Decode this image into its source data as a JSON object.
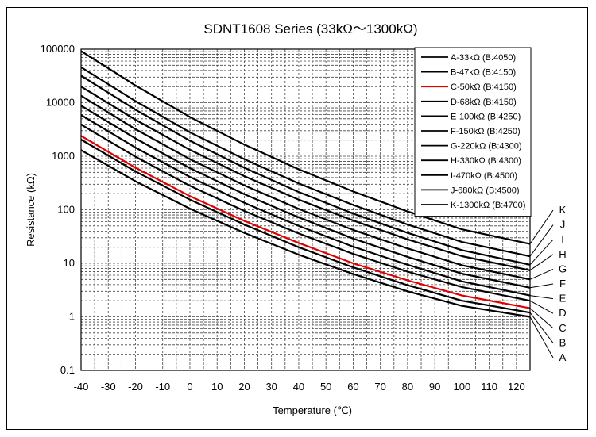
{
  "chart_data": {
    "type": "line",
    "title": "SDNT1608 Series (33kΩ～1300kΩ)",
    "xlabel": "Temperature (℃)",
    "ylabel": "Resistance (kΩ)",
    "xlim": [
      -40,
      125
    ],
    "ylim": [
      0.1,
      100000
    ],
    "yscale": "log",
    "grid": true,
    "legend_position": "top-right",
    "x_ticks": [
      -40,
      -30,
      -20,
      -10,
      0,
      10,
      20,
      30,
      40,
      50,
      60,
      70,
      80,
      90,
      100,
      110,
      120
    ],
    "y_ticks": [
      0.1,
      1,
      10,
      100,
      1000,
      10000,
      100000
    ],
    "y_tick_labels": [
      "0.1",
      "1",
      "10",
      "100",
      "1000",
      "10000",
      "100000"
    ],
    "x": [
      -40,
      -20,
      0,
      20,
      40,
      60,
      80,
      100,
      125
    ],
    "series": [
      {
        "name": "A-33kΩ (B:4050)",
        "end_label": "A",
        "color": "#000000",
        "values": [
          1300,
          340,
          105,
          37,
          14.5,
          6.3,
          3.0,
          1.6,
          1.0
        ]
      },
      {
        "name": "B-47kΩ (B:4150)",
        "end_label": "B",
        "color": "#000000",
        "values": [
          2050,
          520,
          155,
          53,
          20,
          8.4,
          3.9,
          2.0,
          1.2
        ]
      },
      {
        "name": "C-50kΩ (B:4150)",
        "end_label": "C",
        "color": "#e00000",
        "values": [
          2400,
          610,
          180,
          62,
          24,
          10,
          4.8,
          2.5,
          1.45
        ]
      },
      {
        "name": "D-68kΩ (B:4150)",
        "end_label": "D",
        "color": "#000000",
        "values": [
          3900,
          980,
          280,
          95,
          36,
          15,
          7.0,
          3.6,
          2.0
        ]
      },
      {
        "name": "E-100kΩ (B:4250)",
        "end_label": "E",
        "color": "#000000",
        "values": [
          5900,
          1450,
          410,
          135,
          50,
          20.5,
          9.4,
          4.6,
          2.5
        ]
      },
      {
        "name": "F-150kΩ (B:4250)",
        "end_label": "F",
        "color": "#000000",
        "values": [
          8800,
          2150,
          600,
          195,
          72,
          29,
          13.2,
          6.4,
          3.5
        ]
      },
      {
        "name": "G-220kΩ (B:4300)",
        "end_label": "G",
        "color": "#000000",
        "values": [
          13500,
          3200,
          880,
          285,
          104,
          42,
          19,
          9.2,
          5.0
        ]
      },
      {
        "name": "H-330kΩ (B:4300)",
        "end_label": "H",
        "color": "#000000",
        "values": [
          20000,
          4800,
          1320,
          425,
          155,
          63,
          28,
          13.6,
          7.4
        ]
      },
      {
        "name": "I-470kΩ (B:4500)",
        "end_label": "I",
        "color": "#000000",
        "values": [
          32000,
          7400,
          1950,
          610,
          215,
          85,
          37,
          17.6,
          9.4
        ]
      },
      {
        "name": "J-680kΩ (B:4500)",
        "end_label": "J",
        "color": "#000000",
        "values": [
          46000,
          10700,
          2800,
          880,
          310,
          123,
          53,
          25,
          13.5
        ]
      },
      {
        "name": "K-1300kΩ (B:4700)",
        "end_label": "K",
        "color": "#000000",
        "values": [
          92000,
          21000,
          5400,
          1650,
          570,
          220,
          93,
          43,
          23
        ]
      }
    ]
  }
}
